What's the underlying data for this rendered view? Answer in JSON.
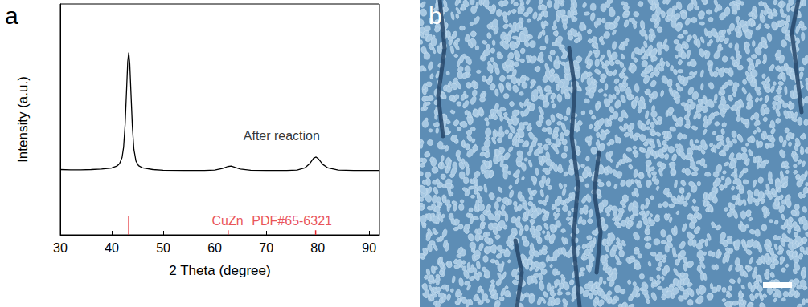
{
  "chart_data": {
    "type": "line",
    "panel_label": "a",
    "x_label": "2 Theta (degree)",
    "y_label": "Intensity (a.u.)",
    "xlim": [
      30,
      92
    ],
    "xticks": [
      30,
      40,
      50,
      60,
      70,
      80,
      90
    ],
    "ylim": [
      0,
      100
    ],
    "tick_labels": "x",
    "grid": false,
    "color": "#000000",
    "x": [
      30,
      32,
      34,
      36,
      38,
      40,
      41,
      41.5,
      42,
      42.3,
      42.6,
      42.9,
      43.1,
      43.3,
      43.5,
      43.7,
      44,
      44.3,
      44.7,
      45.2,
      46,
      48,
      50,
      54,
      58,
      60,
      61.5,
      62.5,
      63.2,
      64,
      65,
      67,
      70,
      74,
      76,
      77.5,
      78.5,
      79.2,
      79.7,
      80.2,
      81,
      82,
      84,
      87,
      90,
      92
    ],
    "values": [
      28.3,
      28.2,
      28.2,
      28.3,
      28.5,
      29.0,
      29.8,
      30.8,
      33.5,
      38,
      48,
      64,
      75,
      79,
      74,
      63,
      47,
      37,
      32,
      30,
      29,
      28.3,
      28,
      27.9,
      27.9,
      28.1,
      28.8,
      29.6,
      29.8,
      29.2,
      28.5,
      28,
      27.9,
      27.9,
      28.1,
      29,
      31,
      33.2,
      33.7,
      32.8,
      30.5,
      29,
      28.1,
      27.9,
      27.9,
      27.9
    ],
    "annotations": [
      {
        "text": "After reaction",
        "x": 73,
        "y": 43
      }
    ],
    "reference": {
      "name": "CuZn",
      "name_at": [
        62.5,
        6
      ],
      "card": "PDF#65-6321",
      "card_at": [
        75,
        6
      ],
      "color": "#e3262d",
      "x": [
        43.3,
        62.6,
        79.6
      ],
      "values": [
        8,
        2,
        2
      ]
    }
  },
  "image_panel": {
    "label": "b"
  }
}
